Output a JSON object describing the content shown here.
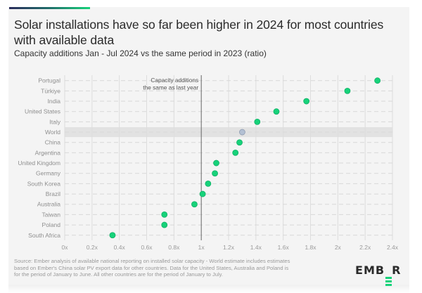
{
  "header": {
    "title": "Solar installations have so far been higher in 2024 for most countries with available data",
    "subtitle": "Capacity additions Jan - Jul 2024 vs the same period in 2023 (ratio)"
  },
  "footer": {
    "source": "Source: Ember analysis of available national reporting on installed solar capacity - World estimate includes estimates based on Ember's China solar PV export data for other countries. Data for the United States, Australia and Poland is for the period of January to June. All other countries are for the period of January to July.",
    "logo_text": [
      "E",
      "M",
      "B",
      "E",
      "R"
    ]
  },
  "colors": {
    "dot_country": "#17d27a",
    "dot_world": "#b3c0d3",
    "highlight_band": "#e2e2e2",
    "reference_line": "#666666"
  },
  "chart_data": {
    "type": "scatter",
    "title": "Solar installations have so far been higher in 2024 for most countries with available data",
    "subtitle": "Capacity additions Jan - Jul 2024 vs the same period in 2023 (ratio)",
    "xlabel": "",
    "ylabel": "",
    "xlim": [
      0,
      2.4
    ],
    "x_ticks": [
      0,
      0.2,
      0.4,
      0.6,
      0.8,
      1,
      1.2,
      1.4,
      1.6,
      1.8,
      2,
      2.2,
      2.4
    ],
    "x_tick_labels": [
      "0x",
      "0.2x",
      "0.4x",
      "0.6x",
      "0.8x",
      "1x",
      "1.2x",
      "1.4x",
      "1.6x",
      "1.8x",
      "2x",
      "2.2x",
      "2.4x"
    ],
    "grid": true,
    "categories": [
      "Portugal",
      "Türkiye",
      "India",
      "United States",
      "Italy",
      "World",
      "China",
      "Argentina",
      "United Kingdom",
      "Germany",
      "South Korea",
      "Brazil",
      "Australia",
      "Taiwan",
      "Poland",
      "South Africa"
    ],
    "values": [
      2.29,
      2.07,
      1.77,
      1.55,
      1.41,
      1.3,
      1.28,
      1.25,
      1.11,
      1.1,
      1.05,
      1.01,
      0.95,
      0.73,
      0.73,
      0.35
    ],
    "highlight_category": "World",
    "reference_line": {
      "x": 1,
      "label_lines": [
        "Capacity additions",
        "the same as last year"
      ]
    }
  }
}
